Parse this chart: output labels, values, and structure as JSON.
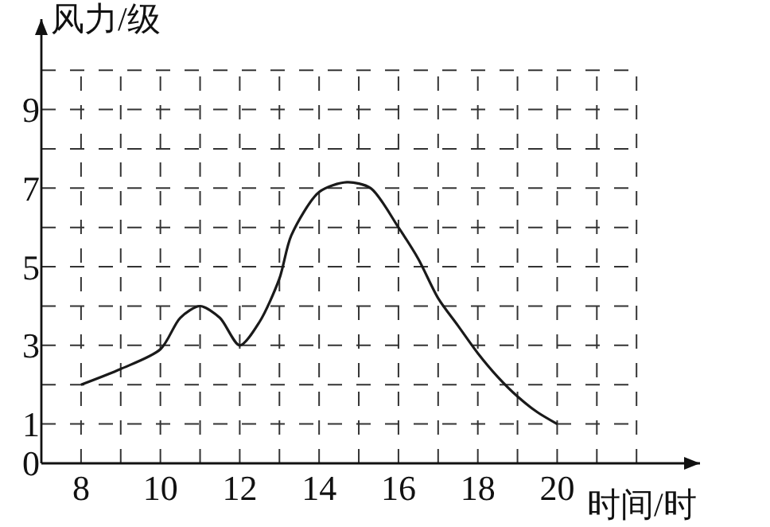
{
  "chart_data": {
    "type": "line",
    "xlabel": "时间/时",
    "ylabel": "风力/级",
    "x": [
      8,
      9,
      10,
      10.5,
      11,
      11.5,
      12,
      12.5,
      13,
      13.3,
      14,
      14.7,
      15.3,
      16,
      16.5,
      17,
      17.5,
      18,
      18.5,
      19,
      19.5,
      20
    ],
    "series": [
      {
        "color": "#1a1a1a",
        "values": [
          2,
          2.4,
          2.9,
          3.7,
          4,
          3.7,
          3,
          3.6,
          4.7,
          5.8,
          6.9,
          7.15,
          7,
          6,
          5.2,
          4.2,
          3.5,
          2.8,
          2.2,
          1.7,
          1.3,
          1
        ]
      }
    ],
    "xlim": [
      7,
      23.6
    ],
    "ylim": [
      0,
      11.3
    ],
    "xticks": [
      8,
      {
        "value": 9,
        "label": null
      },
      10,
      {
        "value": 11,
        "label": null
      },
      12,
      {
        "value": 13,
        "label": null
      },
      14,
      {
        "value": 15,
        "label": null
      },
      16,
      {
        "value": 17,
        "label": null
      },
      18,
      {
        "value": 19,
        "label": null
      },
      20,
      {
        "value": 21,
        "label": null
      },
      {
        "value": 22,
        "label": null
      }
    ],
    "yticks": [
      0,
      1,
      {
        "value": 2,
        "label": null
      },
      3,
      {
        "value": 4,
        "label": null
      },
      5,
      {
        "value": 6,
        "label": null
      },
      7,
      {
        "value": 8,
        "label": null
      },
      9,
      {
        "value": 10,
        "label": null
      }
    ],
    "grid": true,
    "marker": "none",
    "line_style": "solid"
  }
}
